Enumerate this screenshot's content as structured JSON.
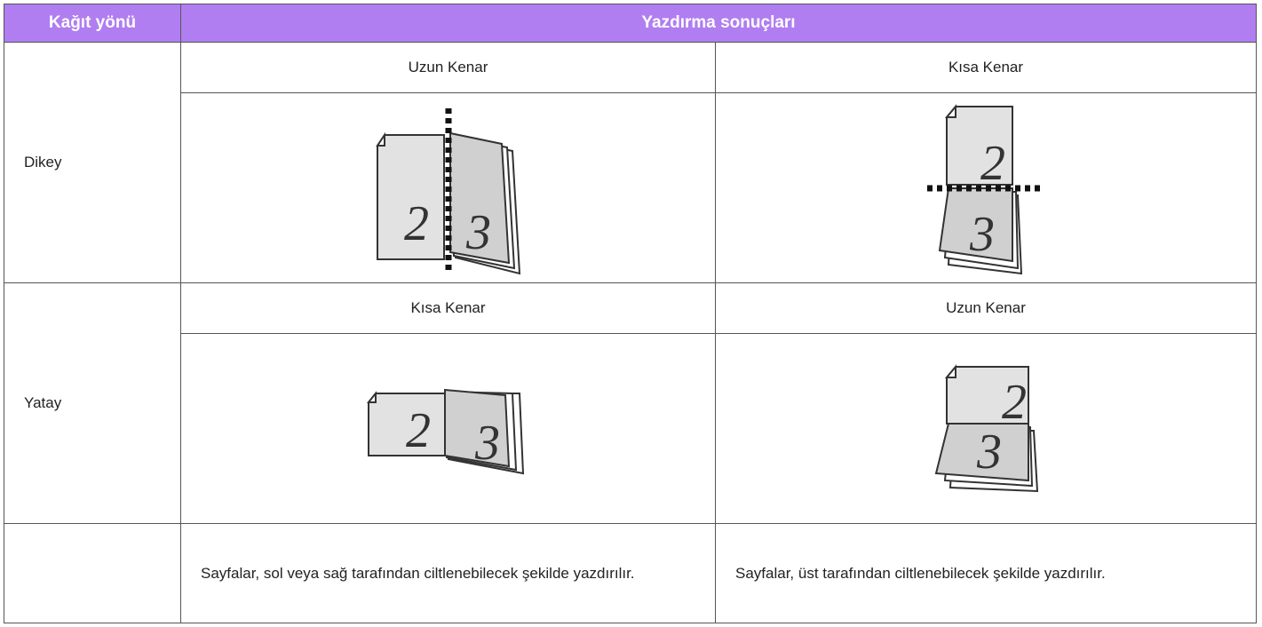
{
  "header": {
    "col1": "Kağıt yönü",
    "col2": "Yazdırma sonuçları"
  },
  "rows": [
    {
      "orientation": "Dikey",
      "bindings": [
        "Uzun Kenar",
        "Kısa Kenar"
      ],
      "figures": [
        {
          "pages": [
            "2",
            "3"
          ]
        },
        {
          "pages": [
            "2",
            "3"
          ]
        }
      ]
    },
    {
      "orientation": "Yatay",
      "bindings": [
        "Kısa Kenar",
        "Uzun Kenar"
      ],
      "figures": [
        {
          "pages": [
            "2",
            "3"
          ]
        },
        {
          "pages": [
            "2",
            "3"
          ]
        }
      ]
    }
  ],
  "notes": [
    "Sayfalar, sol veya sağ tarafından ciltlenebilecek şekilde yazdırılır.",
    "Sayfalar, üst tarafından ciltlenebilecek şekilde yazdırılır."
  ]
}
